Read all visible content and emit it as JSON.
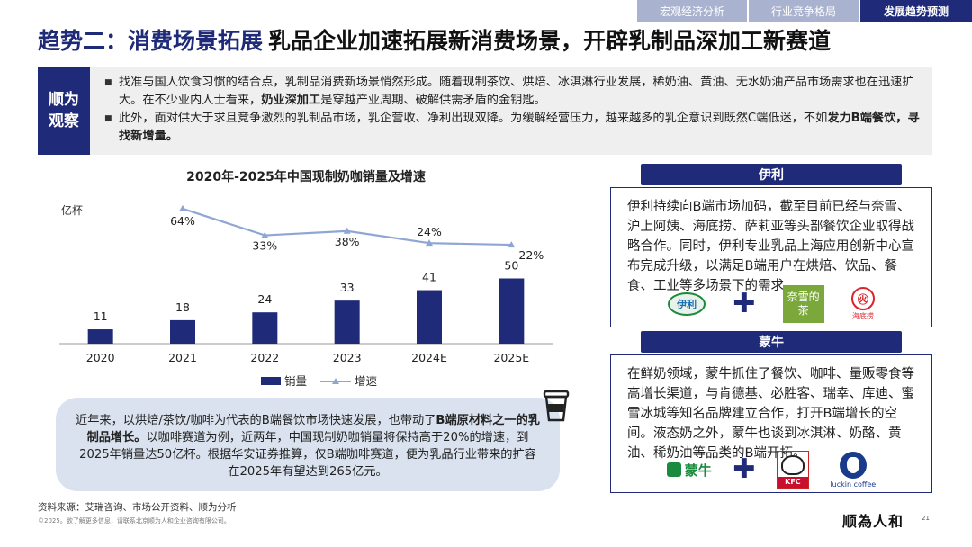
{
  "tabs": [
    {
      "label": "宏观经济分析",
      "active": false
    },
    {
      "label": "行业竞争格局",
      "active": false
    },
    {
      "label": "发展趋势预测",
      "active": true
    }
  ],
  "title": {
    "lead": "趋势二：消费场景拓展",
    "rest": "乳品企业加速拓展新消费场景，开辟乳制品深加工新赛道"
  },
  "observation": {
    "label": "顺为观察",
    "p1_a": "找准与国人饮食习惯的结合点，乳制品消费新场景悄然形成。随着现制茶饮、烘焙、冰淇淋行业发展，稀奶油、黄油、无水奶油产品市场需求也在迅速扩大。在不少业内人士看来，",
    "p1_b": "奶业深加工",
    "p1_c": "是穿越产业周期、破解供需矛盾的金钥匙。",
    "p2_a": "此外，面对供大于求且竞争激烈的乳制品市场，乳企营收、净利出现双降。为缓解经营压力，越来越多的乳企意识到既然C端低迷，不如",
    "p2_b": "发力B端餐饮，寻找新增量。"
  },
  "chart_data": {
    "type": "bar",
    "title": "2020年-2025年中国现制奶咖销量及增速",
    "ylabel": "亿杯",
    "categories": [
      "2020",
      "2021",
      "2022",
      "2023",
      "2024E",
      "2025E"
    ],
    "series": [
      {
        "name": "销量",
        "type": "bar",
        "values": [
          11,
          18,
          24,
          33,
          41,
          50
        ],
        "color": "#1f2a78"
      },
      {
        "name": "增速",
        "type": "line",
        "values": [
          null,
          64,
          33,
          38,
          24,
          22
        ],
        "labels": [
          "",
          "64%",
          "33%",
          "38%",
          "24%",
          "22%"
        ],
        "color": "#8fa6d4"
      }
    ],
    "legend": "bottom",
    "grid": false
  },
  "callout": {
    "a": "近年来，以烘焙/茶饮/咖啡为代表的B端餐饮市场快速发展，也带动了",
    "b": "B端原材料之一的乳制品增长。",
    "c": "以咖啡赛道为例，近两年，中国现制奶咖销量将保持高于20%的增速，到2025年销量达50亿杯。根据华安证券推算，仅B端咖啡赛道，便为乳品行业带来的扩容在2025年有望达到265亿元。"
  },
  "cards": {
    "yili": {
      "title": "伊利",
      "text": "伊利持续向B端市场加码，截至目前已经与奈雪、沪上阿姨、海底捞、萨莉亚等头部餐饮企业取得战略合作。同时，伊利专业乳品上海应用创新中心宣布完成升级，以满足B端用户在烘焙、饮品、餐食、工业等多场景下的需求。",
      "logos": {
        "yili": "伊利",
        "naixue": "奈雪的茶",
        "haidilao": "海底捞"
      }
    },
    "mengniu": {
      "title": "蒙牛",
      "text": "在鲜奶领域，蒙牛抓住了餐饮、咖啡、量贩零食等高增长渠道，与肯德基、必胜客、瑞幸、库迪、蜜雪冰城等知名品牌建立合作，打开B端增长的空间。液态奶之外，蒙牛也谈到冰淇淋、奶酪、黄油、稀奶油等品类的B端开拓。",
      "logos": {
        "mengniu": "蒙牛",
        "kfc": "KFC",
        "luckin": "luckin coffee"
      }
    },
    "plus": "✚"
  },
  "footer": {
    "source": "资料来源：艾瑞咨询、市场公开资料、顺为分析",
    "copyright": "©2025。欲了解更多信息，请联系北京顺为人和企业咨询有限公司。",
    "brand": "顺為人和",
    "page": "21"
  },
  "icons": {
    "cup": "takeaway-cup-icon"
  }
}
